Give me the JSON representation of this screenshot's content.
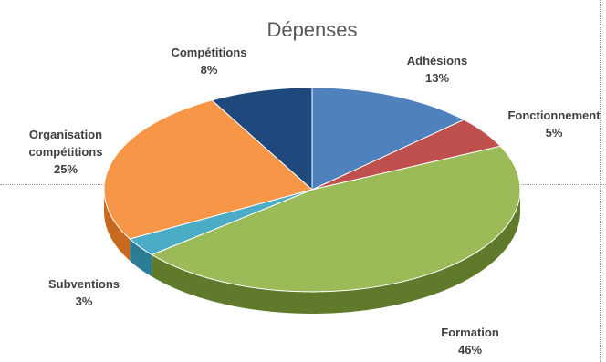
{
  "chart_data": {
    "type": "pie",
    "title": "Dépenses",
    "slices": [
      {
        "name": "Adhésions",
        "label": "13%",
        "value": 13,
        "color": "#4f81bd",
        "side": "#2f5d96"
      },
      {
        "name": "Fonctionnement",
        "label": "5%",
        "value": 5,
        "color": "#c0504d",
        "side": "#8c2f2c"
      },
      {
        "name": "Formation",
        "label": "46%",
        "value": 46,
        "color": "#9bbb59",
        "side": "#5e7a2a"
      },
      {
        "name": "Subventions",
        "label": "3%",
        "value": 3,
        "color": "#4bacc6",
        "side": "#2b7d93"
      },
      {
        "name": "Organisation compétitions",
        "label": "25%",
        "value": 25,
        "color": "#f79646",
        "side": "#c76a1f"
      },
      {
        "name": "Compétitions",
        "label": "8%",
        "value": 8,
        "color": "#1f497d",
        "side": "#12304f"
      }
    ],
    "legend": "none",
    "style": "3d-pie"
  }
}
